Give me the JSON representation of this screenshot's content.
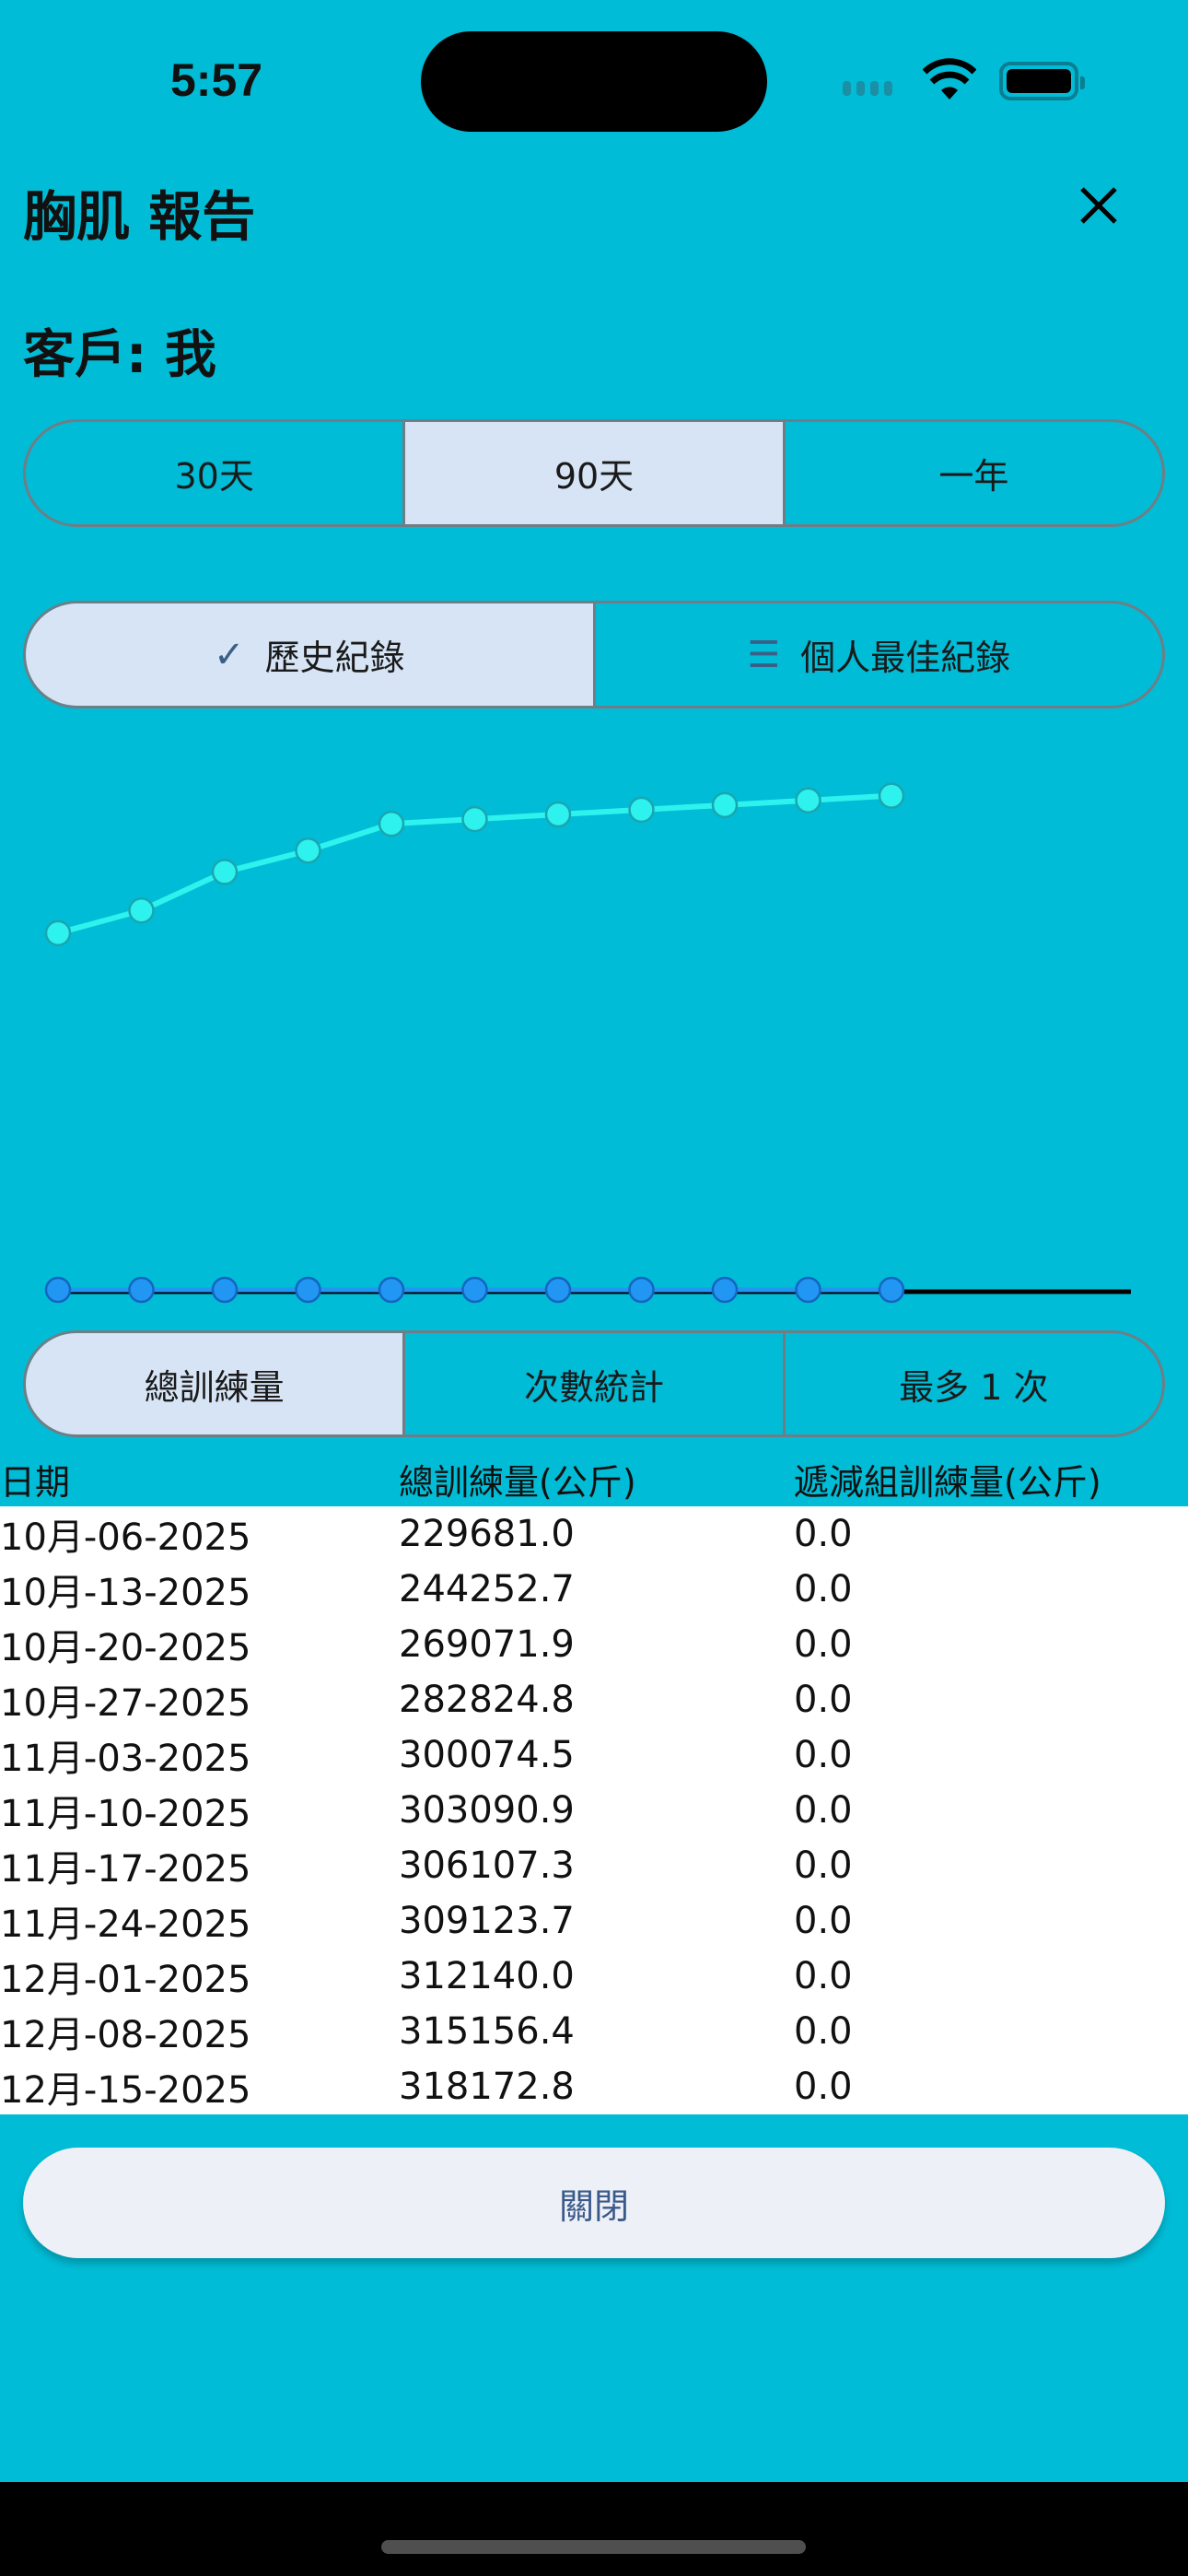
{
  "status_bar": {
    "time": "5:57"
  },
  "header": {
    "title": "胸肌 報告",
    "close_icon": "x-icon"
  },
  "client": "客戶: 我",
  "range_tabs": [
    {
      "label": "30天",
      "selected": false
    },
    {
      "label": "90天",
      "selected": true
    },
    {
      "label": "一年",
      "selected": false
    }
  ],
  "view_tabs": [
    {
      "label": "歷史紀錄",
      "icon": "check-icon",
      "selected": true
    },
    {
      "label": "個人最佳紀錄",
      "icon": "list-icon",
      "selected": false
    }
  ],
  "metric_tabs": [
    {
      "label": "總訓練量",
      "selected": true
    },
    {
      "label": "次數統計",
      "selected": false
    },
    {
      "label": "最多 1 次",
      "selected": false
    }
  ],
  "table": {
    "headers": [
      "日期",
      "總訓練量(公斤)",
      "遞減組訓練量(公斤)"
    ],
    "rows": [
      [
        "10月-06-2025",
        "229681.0",
        "0.0"
      ],
      [
        "10月-13-2025",
        "244252.7",
        "0.0"
      ],
      [
        "10月-20-2025",
        "269071.9",
        "0.0"
      ],
      [
        "10月-27-2025",
        "282824.8",
        "0.0"
      ],
      [
        "11月-03-2025",
        "300074.5",
        "0.0"
      ],
      [
        "11月-10-2025",
        "303090.9",
        "0.0"
      ],
      [
        "11月-17-2025",
        "306107.3",
        "0.0"
      ],
      [
        "11月-24-2025",
        "309123.7",
        "0.0"
      ],
      [
        "12月-01-2025",
        "312140.0",
        "0.0"
      ],
      [
        "12月-08-2025",
        "315156.4",
        "0.0"
      ],
      [
        "12月-15-2025",
        "318172.8",
        "0.0"
      ]
    ]
  },
  "chart_data": {
    "type": "line",
    "categories": [
      "10月-06-2025",
      "10月-13-2025",
      "10月-20-2025",
      "10月-27-2025",
      "11月-03-2025",
      "11月-10-2025",
      "11月-17-2025",
      "11月-24-2025",
      "12月-01-2025",
      "12月-08-2025",
      "12月-15-2025"
    ],
    "series": [
      {
        "values": [
          229681.0,
          244252.7,
          269071.9,
          282824.8,
          300074.5,
          303090.9,
          306107.3,
          309123.7,
          312140.0,
          315156.4,
          318172.8
        ],
        "color": "#2ef2ee"
      },
      {
        "values": [
          0,
          0,
          0,
          0,
          0,
          0,
          0,
          0,
          0,
          0,
          0
        ],
        "color": "#2196f3"
      }
    ],
    "ylim": [
      0,
      350000
    ],
    "grid": false,
    "legend": "none"
  },
  "close_button": "關閉",
  "colors": {
    "background": "#00bcd6",
    "selected": "#d6e4f5",
    "border": "#6f7e86"
  }
}
